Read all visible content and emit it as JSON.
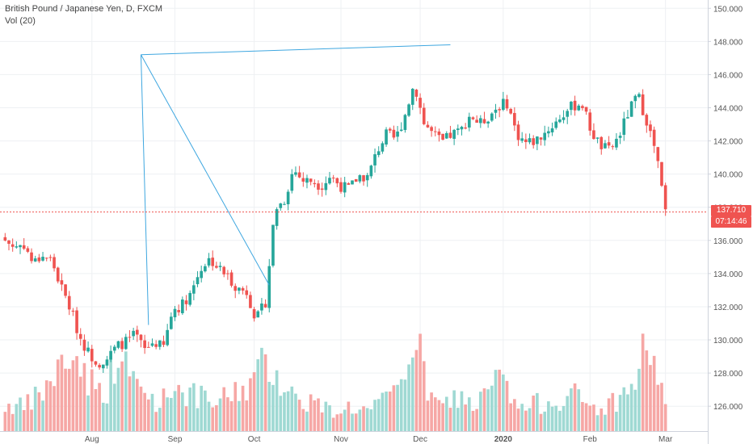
{
  "legend": {
    "title": "British Pound / Japanese Yen, D, FXCM",
    "volume": "Vol (20)"
  },
  "price_label": "137.710",
  "time_label": "07:14:46",
  "colors": {
    "up": "#26a69a",
    "down": "#ef5350",
    "up_vol": "#9fd9d3",
    "down_vol": "#f6a7a5",
    "grid": "#eef0f3",
    "drawing": "#3fa7e0",
    "price_line": "#ef5350"
  },
  "chart_data": {
    "type": "candlestick",
    "title": "British Pound / Japanese Yen, D, FXCM",
    "symbol": "GBPJPY",
    "timeframe": "D",
    "source": "FXCM",
    "ylim": [
      124.5,
      150.5
    ],
    "yticks": [
      126,
      128,
      130,
      132,
      134,
      136,
      138,
      140,
      142,
      144,
      146,
      148,
      150
    ],
    "ytick_labels": [
      "126.000",
      "128.000",
      "130.000",
      "132.000",
      "134.000",
      "136.000",
      "138.000",
      "140.000",
      "142.000",
      "144.000",
      "146.000",
      "148.000",
      "150.000"
    ],
    "xticks": [
      "Aug",
      "Sep",
      "Oct",
      "Nov",
      "Dec",
      "2020",
      "Feb",
      "Mar"
    ],
    "last_price": 137.71,
    "close_path": [
      136.0,
      135.6,
      135.8,
      134.6,
      135.1,
      134.8,
      133.2,
      131.9,
      130.2,
      129.2,
      128.6,
      128.9,
      129.6,
      129.9,
      130.3,
      129.4,
      129.9,
      129.5,
      131.8,
      132.1,
      132.9,
      134.3,
      134.9,
      134.3,
      133.8,
      133.1,
      132.9,
      131.2,
      132.3,
      137.9,
      138.4,
      140.3,
      139.6,
      139.6,
      139.3,
      139.9,
      139.3,
      139.1,
      139.9,
      139.8,
      141.4,
      142.4,
      142.1,
      143.6,
      145.5,
      143.1,
      142.4,
      141.9,
      142.4,
      142.6,
      143.6,
      143.0,
      143.5,
      144.1,
      144.3,
      142.4,
      141.9,
      142.0,
      142.5,
      143.0,
      143.6,
      144.1,
      144.3,
      142.6,
      141.7,
      141.4,
      142.3,
      143.7,
      144.8,
      143.2,
      141.2,
      137.7
    ],
    "volume_path": [
      1.3,
      1.4,
      1.2,
      1.6,
      1.9,
      2.5,
      3.0,
      3.6,
      3.2,
      2.6,
      1.9,
      2.2,
      3.6,
      2.9,
      2.4,
      1.9,
      1.6,
      1.6,
      2.3,
      2.1,
      1.8,
      1.7,
      1.4,
      1.5,
      1.8,
      2.0,
      2.2,
      2.6,
      3.3,
      3.0,
      2.2,
      1.8,
      1.5,
      1.6,
      1.3,
      1.1,
      1.2,
      1.3,
      1.2,
      1.1,
      1.3,
      1.6,
      1.9,
      3.0,
      4.8,
      2.6,
      1.5,
      1.3,
      1.6,
      1.8,
      1.4,
      1.5,
      1.9,
      2.8,
      1.9,
      1.3,
      1.2,
      1.4,
      1.5,
      1.6,
      1.7,
      1.9,
      1.5,
      1.3,
      1.2,
      1.4,
      1.7,
      1.9,
      2.7,
      4.2,
      3.1,
      1.2
    ],
    "volume_scale": {
      "baseline_price": 124.2,
      "unit_per_volume": 1.37
    },
    "x_start_date": "2019-07-01",
    "x_end_date": "2020-03-02",
    "drawings": [
      {
        "type": "trendline",
        "from": [
          "2019-08-20",
          147.2
        ],
        "to": [
          "2019-12-12",
          147.8
        ]
      },
      {
        "type": "trendline",
        "from": [
          "2019-08-20",
          147.2
        ],
        "to": [
          "2019-08-22",
          130.9
        ]
      },
      {
        "type": "trendline",
        "from": [
          "2019-08-20",
          147.2
        ],
        "to": [
          "2019-10-07",
          133.3
        ]
      }
    ]
  }
}
